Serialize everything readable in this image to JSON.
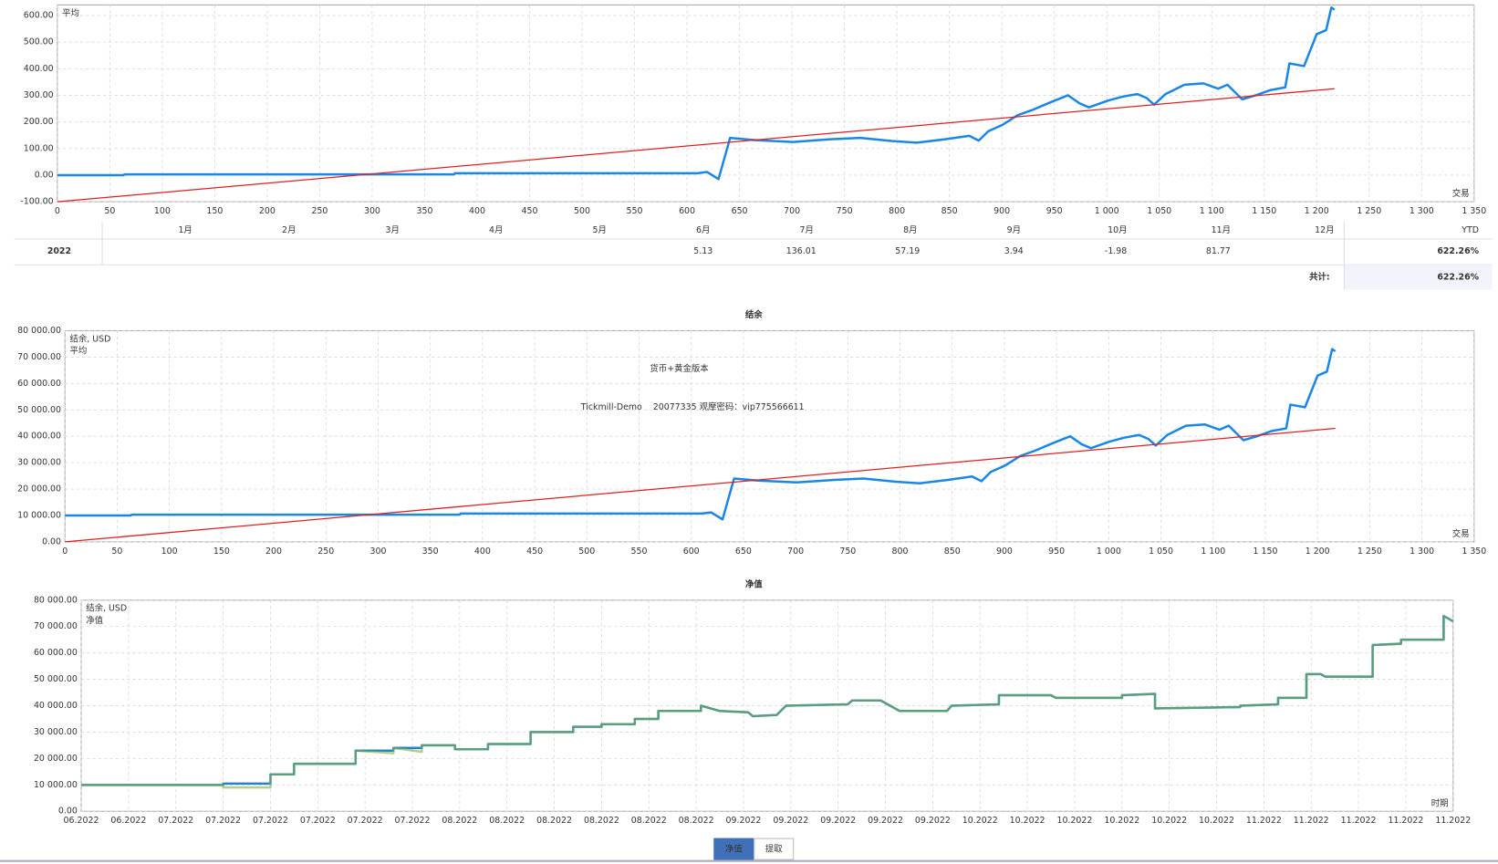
{
  "chart_data": [
    {
      "type": "line",
      "legend": "top-left",
      "grid": true,
      "x_label": "交易",
      "xlim": [
        0,
        1350
      ],
      "ylim": [
        -100,
        640
      ],
      "xticks": [
        0,
        50,
        100,
        150,
        200,
        250,
        300,
        350,
        400,
        450,
        500,
        550,
        600,
        650,
        700,
        750,
        800,
        850,
        900,
        950,
        {
          "value": 1000,
          "label": "1 000"
        },
        {
          "value": 1050,
          "label": "1 050"
        },
        {
          "value": 1100,
          "label": "1 100"
        },
        {
          "value": 1150,
          "label": "1 150"
        },
        {
          "value": 1200,
          "label": "1 200"
        },
        {
          "value": 1250,
          "label": "1 250"
        },
        {
          "value": 1300,
          "label": "1 300"
        },
        {
          "value": 1350,
          "label": "1 350"
        }
      ],
      "yticks": [
        {
          "value": -100,
          "label": "-100.00"
        },
        {
          "value": 0,
          "label": "0.00"
        },
        {
          "value": 100,
          "label": "100.00"
        },
        {
          "value": 200,
          "label": "200.00"
        },
        {
          "value": 300,
          "label": "300.00"
        },
        {
          "value": 400,
          "label": "400.00"
        },
        {
          "value": 500,
          "label": "500.00"
        },
        {
          "value": 600,
          "label": "600.00"
        }
      ],
      "series": [
        {
          "color": "#1a86e6",
          "x": [
            0,
            63,
            64,
            378,
            379,
            610,
            619,
            630,
            641,
            664,
            701,
            737,
            765,
            796,
            819,
            846,
            869,
            878,
            887,
            901,
            915,
            929,
            947,
            963,
            974,
            983,
            1001,
            1015,
            1029,
            1038,
            1045,
            1056,
            1074,
            1092,
            1106,
            1115,
            1129,
            1142,
            1156,
            1170,
            1174,
            1188,
            1200,
            1209,
            1214,
            1217
          ],
          "values": [
            0,
            0,
            3,
            3,
            7,
            7,
            12,
            -15,
            140,
            132,
            125,
            135,
            140,
            128,
            122,
            135,
            148,
            130,
            165,
            190,
            225,
            245,
            275,
            300,
            270,
            255,
            280,
            295,
            305,
            290,
            265,
            305,
            340,
            345,
            325,
            340,
            285,
            300,
            320,
            330,
            420,
            410,
            530,
            545,
            630,
            622
          ]
        },
        {
          "name": "平均",
          "color": "#e02020",
          "x": [
            0,
            1217
          ],
          "values": [
            -100,
            325
          ]
        }
      ]
    },
    {
      "type": "line",
      "title": "结余",
      "legend": "top-left",
      "grid": true,
      "x_label": "交易",
      "annotations": [
        "货币+黄金版本",
        "Tickmill-Demo    20077335 观摩密码：vip775566611"
      ],
      "xlim": [
        0,
        1350
      ],
      "ylim": [
        0,
        80000
      ],
      "xticks": [
        0,
        50,
        100,
        150,
        200,
        250,
        300,
        350,
        400,
        450,
        500,
        550,
        600,
        650,
        700,
        750,
        800,
        850,
        900,
        950,
        {
          "value": 1000,
          "label": "1 000"
        },
        {
          "value": 1050,
          "label": "1 050"
        },
        {
          "value": 1100,
          "label": "1 100"
        },
        {
          "value": 1150,
          "label": "1 150"
        },
        {
          "value": 1200,
          "label": "1 200"
        },
        {
          "value": 1250,
          "label": "1 250"
        },
        {
          "value": 1300,
          "label": "1 300"
        },
        {
          "value": 1350,
          "label": "1 350"
        }
      ],
      "yticks": [
        {
          "value": 0,
          "label": "0.00"
        },
        {
          "value": 10000,
          "label": "10 000.00"
        },
        {
          "value": 20000,
          "label": "20 000.00"
        },
        {
          "value": 30000,
          "label": "30 000.00"
        },
        {
          "value": 40000,
          "label": "40 000.00"
        },
        {
          "value": 50000,
          "label": "50 000.00"
        },
        {
          "value": 60000,
          "label": "60 000.00"
        },
        {
          "value": 70000,
          "label": "70 000.00"
        },
        {
          "value": 80000,
          "label": "80 000.00"
        }
      ],
      "series": [
        {
          "name": "结余, USD",
          "color": "#1a86e6",
          "x": [
            0,
            63,
            64,
            378,
            379,
            610,
            619,
            630,
            641,
            664,
            701,
            737,
            765,
            796,
            819,
            846,
            869,
            878,
            887,
            901,
            915,
            929,
            947,
            963,
            974,
            983,
            1001,
            1015,
            1029,
            1038,
            1045,
            1056,
            1074,
            1092,
            1106,
            1115,
            1129,
            1142,
            1156,
            1170,
            1174,
            1188,
            1200,
            1209,
            1214,
            1217
          ],
          "values": [
            10000,
            10000,
            10300,
            10300,
            10700,
            10700,
            11200,
            8500,
            24000,
            23200,
            22500,
            23500,
            24000,
            22800,
            22200,
            23500,
            24800,
            23000,
            26500,
            29000,
            32500,
            34500,
            37500,
            40000,
            37000,
            35500,
            38000,
            39500,
            40500,
            39000,
            36500,
            40500,
            44000,
            44500,
            42500,
            44000,
            38500,
            40000,
            42000,
            43000,
            52000,
            51000,
            63000,
            64500,
            73000,
            72200
          ]
        },
        {
          "name": "平均",
          "color": "#e02020",
          "x": [
            0,
            1217
          ],
          "values": [
            0,
            43000
          ]
        }
      ]
    },
    {
      "type": "line",
      "title": "净值",
      "legend": "top-left",
      "grid": true,
      "x_label": "时期",
      "xlim": [
        0,
        29
      ],
      "ylim": [
        0,
        80000
      ],
      "xticks": [
        {
          "value": 0,
          "label": "06.2022"
        },
        {
          "value": 1,
          "label": "06.2022"
        },
        {
          "value": 2,
          "label": "07.2022"
        },
        {
          "value": 3,
          "label": "07.2022"
        },
        {
          "value": 4,
          "label": "07.2022"
        },
        {
          "value": 5,
          "label": "07.2022"
        },
        {
          "value": 6,
          "label": "07.2022"
        },
        {
          "value": 7,
          "label": "07.2022"
        },
        {
          "value": 8,
          "label": "08.2022"
        },
        {
          "value": 9,
          "label": "08.2022"
        },
        {
          "value": 10,
          "label": "08.2022"
        },
        {
          "value": 11,
          "label": "08.2022"
        },
        {
          "value": 12,
          "label": "08.2022"
        },
        {
          "value": 13,
          "label": "08.2022"
        },
        {
          "value": 14,
          "label": "09.2022"
        },
        {
          "value": 15,
          "label": "09.2022"
        },
        {
          "value": 16,
          "label": "09.2022"
        },
        {
          "value": 17,
          "label": "09.2022"
        },
        {
          "value": 18,
          "label": "09.2022"
        },
        {
          "value": 19,
          "label": "10.2022"
        },
        {
          "value": 20,
          "label": "10.2022"
        },
        {
          "value": 21,
          "label": "10.2022"
        },
        {
          "value": 22,
          "label": "10.2022"
        },
        {
          "value": 23,
          "label": "10.2022"
        },
        {
          "value": 24,
          "label": "10.2022"
        },
        {
          "value": 25,
          "label": "11.2022"
        },
        {
          "value": 26,
          "label": "11.2022"
        },
        {
          "value": 27,
          "label": "11.2022"
        },
        {
          "value": 28,
          "label": "11.2022"
        },
        {
          "value": 29,
          "label": "11.2022"
        }
      ],
      "yticks": [
        {
          "value": 0,
          "label": "0.00"
        },
        {
          "value": 10000,
          "label": "10 000.00"
        },
        {
          "value": 20000,
          "label": "20 000.00"
        },
        {
          "value": 30000,
          "label": "30 000.00"
        },
        {
          "value": 40000,
          "label": "40 000.00"
        },
        {
          "value": 50000,
          "label": "50 000.00"
        },
        {
          "value": 60000,
          "label": "60 000.00"
        },
        {
          "value": 70000,
          "label": "70 000.00"
        },
        {
          "value": 80000,
          "label": "80 000.00"
        }
      ],
      "series": [
        {
          "name": "结余, USD",
          "color": "#2a7fd0",
          "x": [
            0,
            3,
            3,
            4,
            4,
            4.5,
            4.5,
            5.8,
            5.8,
            6.6,
            6.6,
            7.2,
            7.2,
            7.9,
            7.9,
            8.6,
            8.6,
            9.5,
            9.5,
            10.4,
            10.4,
            11,
            11,
            11.7,
            11.7,
            12.2,
            12.2,
            13.1,
            13.1,
            13.5,
            14.1,
            14.2,
            14.7,
            14.9,
            16.2,
            16.3,
            16.9,
            17.3,
            18.3,
            18.4,
            19.4,
            19.4,
            20.5,
            20.6,
            22,
            22,
            22.7,
            22.7,
            24.5,
            24.5,
            25.3,
            25.3,
            25.9,
            25.9,
            26.2,
            26.3,
            27.3,
            27.3,
            27.9,
            27.9,
            28.8,
            28.8,
            29
          ],
          "values": [
            10000,
            10000,
            10500,
            10500,
            14000,
            14000,
            18000,
            18000,
            23000,
            23000,
            24000,
            24000,
            25000,
            25000,
            23500,
            23500,
            25500,
            25500,
            30000,
            30000,
            32000,
            32000,
            33000,
            33000,
            35000,
            35000,
            38000,
            38000,
            40000,
            38000,
            37500,
            36000,
            36500,
            40000,
            40500,
            42000,
            42000,
            38000,
            38000,
            40000,
            40500,
            44000,
            44000,
            43000,
            43000,
            44000,
            44500,
            39000,
            39500,
            40000,
            40500,
            43000,
            43000,
            52000,
            52000,
            51000,
            51000,
            63000,
            63500,
            65000,
            65000,
            74000,
            72000
          ]
        },
        {
          "name": "净值",
          "color": "#7cb342",
          "x": [
            0,
            3,
            3,
            4,
            4,
            4.5,
            4.5,
            5.8,
            5.8,
            6.6,
            6.6,
            7.2,
            7.2,
            7.9,
            7.9,
            8.6,
            8.6,
            9.5,
            9.5,
            10.4,
            10.4,
            11,
            11,
            11.7,
            11.7,
            12.2,
            12.2,
            13.1,
            13.1,
            13.5,
            14.1,
            14.2,
            14.7,
            14.9,
            16.2,
            16.3,
            16.9,
            17.3,
            18.3,
            18.4,
            19.4,
            19.4,
            20.5,
            20.6,
            22,
            22,
            22.7,
            22.7,
            24.5,
            24.5,
            25.3,
            25.3,
            25.9,
            25.9,
            26.2,
            26.3,
            27.3,
            27.3,
            27.9,
            27.9,
            28.8,
            28.8,
            29
          ],
          "values": [
            10000,
            10000,
            9000,
            9000,
            14000,
            14000,
            18000,
            18000,
            23000,
            22000,
            24000,
            22500,
            25000,
            25000,
            23500,
            23500,
            25500,
            25500,
            30000,
            30000,
            32000,
            32000,
            33000,
            33000,
            35000,
            35000,
            38000,
            38000,
            40000,
            38000,
            37500,
            36000,
            36500,
            40000,
            40500,
            42000,
            42000,
            38000,
            38000,
            40000,
            40500,
            44000,
            44000,
            43000,
            43000,
            44000,
            44500,
            39000,
            39500,
            40000,
            40500,
            43000,
            43000,
            52000,
            52000,
            51000,
            51000,
            63000,
            63500,
            65000,
            65000,
            74000,
            72000
          ]
        }
      ]
    }
  ],
  "table": {
    "months": [
      "1月",
      "2月",
      "3月",
      "4月",
      "5月",
      "6月",
      "7月",
      "8月",
      "9月",
      "10月",
      "11月",
      "12月"
    ],
    "ytd_header": "YTD",
    "rows": [
      {
        "year": "2022",
        "values": [
          null,
          null,
          null,
          null,
          null,
          5.13,
          136.01,
          57.19,
          3.94,
          -1.98,
          81.77,
          null
        ],
        "ytd": "622.26%"
      }
    ],
    "total_label": "共计:",
    "total": "622.26%"
  },
  "tabs": [
    "净值",
    "提取"
  ]
}
